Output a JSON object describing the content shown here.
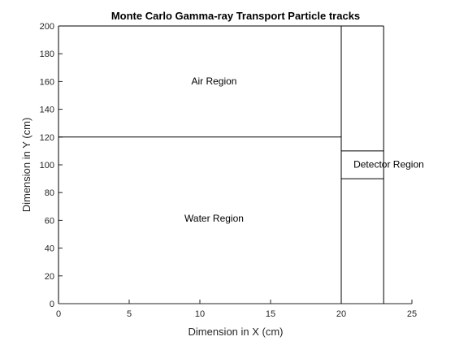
{
  "chart_data": {
    "type": "line",
    "title": "Monte Carlo Gamma-ray Transport Particle tracks",
    "xlabel": "Dimension in X (cm)",
    "ylabel": "Dimension in Y (cm)",
    "xlim": [
      0,
      25
    ],
    "ylim": [
      0,
      200
    ],
    "xticks": [
      0,
      5,
      10,
      15,
      20,
      25
    ],
    "yticks": [
      0,
      20,
      40,
      60,
      80,
      100,
      120,
      140,
      160,
      180,
      200
    ],
    "grid": false,
    "series": [
      {
        "name": "air-water-boundary",
        "x": [
          0,
          20
        ],
        "y": [
          120,
          120
        ]
      },
      {
        "name": "detector-left-wall",
        "x": [
          20,
          20
        ],
        "y": [
          0,
          200
        ]
      },
      {
        "name": "detector-right-wall",
        "x": [
          23,
          23
        ],
        "y": [
          0,
          200
        ]
      },
      {
        "name": "detector-top-edge",
        "x": [
          20,
          23
        ],
        "y": [
          110,
          110
        ]
      },
      {
        "name": "detector-bottom-edge",
        "x": [
          20,
          23
        ],
        "y": [
          90,
          90
        ]
      },
      {
        "name": "top-boundary",
        "x": [
          0,
          23
        ],
        "y": [
          200,
          200
        ]
      },
      {
        "name": "left-boundary",
        "x": [
          0,
          0
        ],
        "y": [
          0,
          200
        ]
      }
    ],
    "annotations": [
      {
        "name": "air-region-label",
        "text": "Air Region",
        "x": 10.2,
        "y": 158
      },
      {
        "name": "water-region-label",
        "text": "Water Region",
        "x": 10.2,
        "y": 59
      },
      {
        "name": "detector-region-label",
        "text": "Detector Region",
        "x": 21.5,
        "y": 98
      }
    ]
  }
}
